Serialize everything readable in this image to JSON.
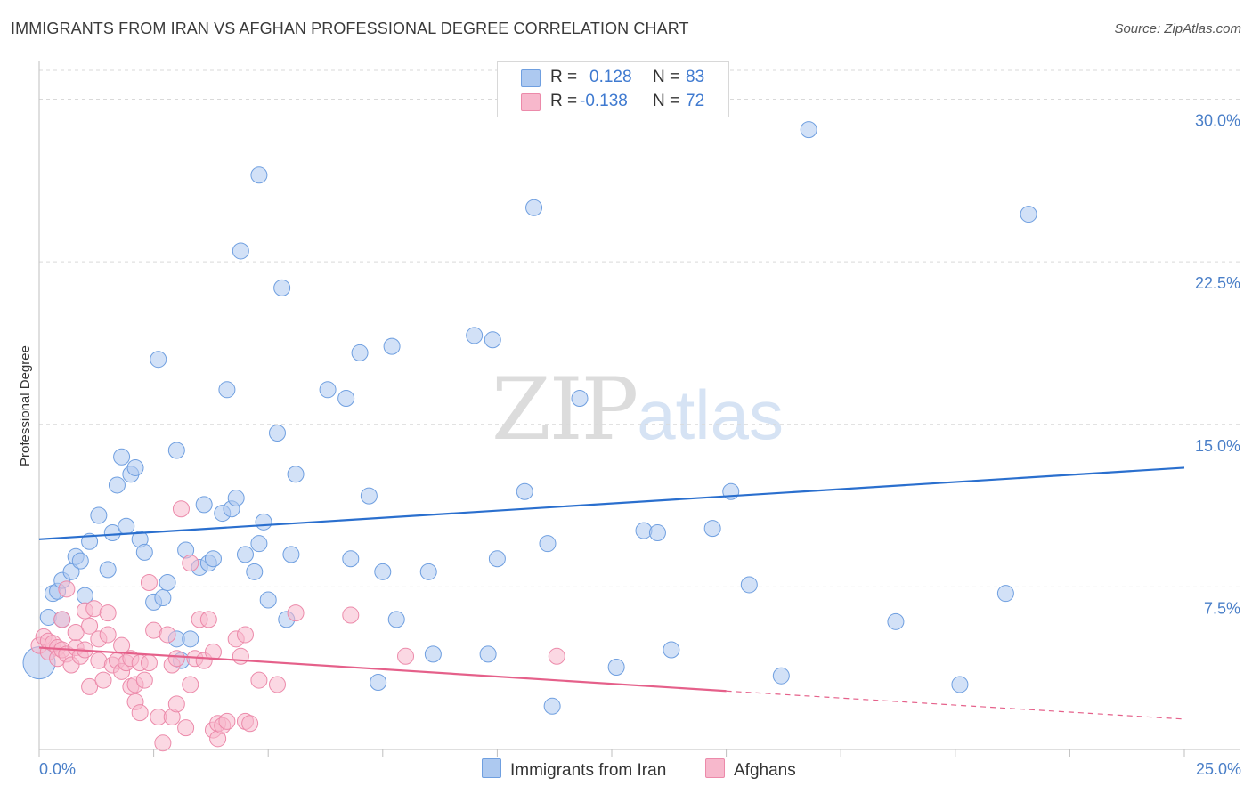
{
  "title": "IMMIGRANTS FROM IRAN VS AFGHAN PROFESSIONAL DEGREE CORRELATION CHART",
  "source": "Source: ZipAtlas.com",
  "watermark": {
    "zip": "ZIP",
    "atlas": "atlas"
  },
  "legend": {
    "rows": [
      {
        "r_label": "R =",
        "r_value": "0.128",
        "n_label": "N =",
        "n_value": "83"
      },
      {
        "r_label": "R =",
        "r_value": "-0.138",
        "n_label": "N =",
        "n_value": "72"
      }
    ]
  },
  "bottom_legend": {
    "iran": "Immigrants from Iran",
    "afghan": "Afghans"
  },
  "colors": {
    "iran_fill": "#adc9f0",
    "iran_stroke": "#6f9fe0",
    "iran_line": "#2a6fce",
    "afghan_fill": "#f7b8cc",
    "afghan_stroke": "#ec8aaa",
    "afghan_line": "#e5608a",
    "tick_text": "#4a7fc8",
    "grid": "#d9d9d9"
  },
  "chart_data": {
    "type": "scatter",
    "title": "IMMIGRANTS FROM IRAN VS AFGHAN PROFESSIONAL DEGREE CORRELATION CHART",
    "ylabel": "Professional Degree",
    "xlim": [
      0,
      25
    ],
    "ylim": [
      0,
      31.5
    ],
    "x_tick_labels": [
      "0.0%",
      "25.0%"
    ],
    "y_ticks": [
      7.5,
      15.0,
      22.5,
      30.0
    ],
    "y_tick_labels": [
      "7.5%",
      "15.0%",
      "22.5%",
      "30.0%"
    ],
    "grid": true,
    "series": [
      {
        "name": "Immigrants from Iran",
        "R": 0.128,
        "N": 83,
        "trend": {
          "x0": 0,
          "y0": 9.7,
          "x1": 25,
          "y1": 13.0
        },
        "points": [
          [
            0.0,
            4.0
          ],
          [
            0.2,
            6.1
          ],
          [
            0.3,
            7.2
          ],
          [
            0.4,
            7.3
          ],
          [
            0.5,
            6.0
          ],
          [
            0.5,
            7.8
          ],
          [
            0.7,
            8.2
          ],
          [
            0.8,
            8.9
          ],
          [
            0.9,
            8.7
          ],
          [
            1.0,
            7.1
          ],
          [
            1.1,
            9.6
          ],
          [
            1.3,
            10.8
          ],
          [
            1.5,
            8.3
          ],
          [
            1.6,
            10.0
          ],
          [
            1.7,
            12.2
          ],
          [
            1.8,
            13.5
          ],
          [
            1.9,
            10.3
          ],
          [
            2.0,
            12.7
          ],
          [
            2.1,
            13.0
          ],
          [
            2.2,
            9.7
          ],
          [
            2.3,
            9.1
          ],
          [
            2.5,
            6.8
          ],
          [
            2.6,
            18.0
          ],
          [
            2.7,
            7.0
          ],
          [
            2.8,
            7.7
          ],
          [
            3.0,
            5.1
          ],
          [
            3.0,
            13.8
          ],
          [
            3.1,
            4.1
          ],
          [
            3.2,
            9.2
          ],
          [
            3.3,
            5.1
          ],
          [
            3.5,
            8.4
          ],
          [
            3.6,
            11.3
          ],
          [
            3.7,
            8.6
          ],
          [
            3.8,
            8.8
          ],
          [
            4.0,
            10.9
          ],
          [
            4.1,
            16.6
          ],
          [
            4.2,
            11.1
          ],
          [
            4.3,
            11.6
          ],
          [
            4.4,
            23.0
          ],
          [
            4.5,
            9.0
          ],
          [
            4.7,
            8.2
          ],
          [
            4.8,
            9.5
          ],
          [
            4.8,
            26.5
          ],
          [
            4.9,
            10.5
          ],
          [
            5.0,
            6.9
          ],
          [
            5.2,
            14.6
          ],
          [
            5.3,
            21.3
          ],
          [
            5.4,
            6.0
          ],
          [
            5.5,
            9.0
          ],
          [
            5.6,
            12.7
          ],
          [
            6.3,
            16.6
          ],
          [
            6.7,
            16.2
          ],
          [
            6.8,
            8.8
          ],
          [
            7.0,
            18.3
          ],
          [
            7.2,
            11.7
          ],
          [
            7.4,
            3.1
          ],
          [
            7.5,
            8.2
          ],
          [
            7.7,
            18.6
          ],
          [
            7.8,
            6.0
          ],
          [
            8.5,
            8.2
          ],
          [
            8.6,
            4.4
          ],
          [
            9.5,
            19.1
          ],
          [
            9.8,
            4.4
          ],
          [
            9.9,
            18.9
          ],
          [
            10.0,
            8.8
          ],
          [
            10.6,
            11.9
          ],
          [
            10.8,
            25.0
          ],
          [
            11.1,
            9.5
          ],
          [
            11.2,
            2.0
          ],
          [
            11.8,
            16.2
          ],
          [
            12.6,
            3.8
          ],
          [
            13.2,
            10.1
          ],
          [
            13.5,
            10.0
          ],
          [
            13.8,
            4.6
          ],
          [
            14.7,
            10.2
          ],
          [
            15.1,
            11.9
          ],
          [
            15.5,
            7.6
          ],
          [
            16.2,
            3.4
          ],
          [
            16.8,
            28.6
          ],
          [
            18.7,
            5.9
          ],
          [
            20.1,
            3.0
          ],
          [
            21.1,
            7.2
          ],
          [
            21.6,
            24.7
          ]
        ]
      },
      {
        "name": "Afghans",
        "R": -0.138,
        "N": 72,
        "trend": {
          "x0": 0,
          "y0": 4.7,
          "x1": 15.0,
          "y1": 2.7
        },
        "trend_dashed": {
          "x0": 15.0,
          "y0": 2.7,
          "x1": 25,
          "y1": 1.4
        },
        "points": [
          [
            0.0,
            4.8
          ],
          [
            0.1,
            5.2
          ],
          [
            0.2,
            4.5
          ],
          [
            0.2,
            5.0
          ],
          [
            0.3,
            4.9
          ],
          [
            0.4,
            4.7
          ],
          [
            0.4,
            4.2
          ],
          [
            0.5,
            6.0
          ],
          [
            0.5,
            4.6
          ],
          [
            0.6,
            4.4
          ],
          [
            0.6,
            7.4
          ],
          [
            0.7,
            3.9
          ],
          [
            0.8,
            4.7
          ],
          [
            0.8,
            5.4
          ],
          [
            0.9,
            4.3
          ],
          [
            1.0,
            4.6
          ],
          [
            1.0,
            6.4
          ],
          [
            1.1,
            2.9
          ],
          [
            1.1,
            5.7
          ],
          [
            1.2,
            6.5
          ],
          [
            1.3,
            5.1
          ],
          [
            1.3,
            4.1
          ],
          [
            1.4,
            3.2
          ],
          [
            1.5,
            5.3
          ],
          [
            1.5,
            6.3
          ],
          [
            1.6,
            3.9
          ],
          [
            1.7,
            4.1
          ],
          [
            1.8,
            4.8
          ],
          [
            1.8,
            3.6
          ],
          [
            1.9,
            4.0
          ],
          [
            2.0,
            4.2
          ],
          [
            2.0,
            2.9
          ],
          [
            2.1,
            3.0
          ],
          [
            2.1,
            2.2
          ],
          [
            2.2,
            4.0
          ],
          [
            2.2,
            1.7
          ],
          [
            2.3,
            3.2
          ],
          [
            2.4,
            7.7
          ],
          [
            2.4,
            4.0
          ],
          [
            2.5,
            5.5
          ],
          [
            2.6,
            1.5
          ],
          [
            2.7,
            0.3
          ],
          [
            2.8,
            5.3
          ],
          [
            2.9,
            3.9
          ],
          [
            2.9,
            1.5
          ],
          [
            3.0,
            2.1
          ],
          [
            3.0,
            4.2
          ],
          [
            3.1,
            11.1
          ],
          [
            3.2,
            1.0
          ],
          [
            3.3,
            3.0
          ],
          [
            3.3,
            8.6
          ],
          [
            3.4,
            4.2
          ],
          [
            3.5,
            6.0
          ],
          [
            3.6,
            4.1
          ],
          [
            3.7,
            6.0
          ],
          [
            3.8,
            0.9
          ],
          [
            3.8,
            4.5
          ],
          [
            3.9,
            0.5
          ],
          [
            3.9,
            1.2
          ],
          [
            4.0,
            1.1
          ],
          [
            4.1,
            1.3
          ],
          [
            4.3,
            5.1
          ],
          [
            4.4,
            4.3
          ],
          [
            4.5,
            5.3
          ],
          [
            4.5,
            1.3
          ],
          [
            4.6,
            1.2
          ],
          [
            4.8,
            3.2
          ],
          [
            5.2,
            3.0
          ],
          [
            5.6,
            6.3
          ],
          [
            6.8,
            6.2
          ],
          [
            8.0,
            4.3
          ],
          [
            11.3,
            4.3
          ]
        ]
      }
    ]
  }
}
